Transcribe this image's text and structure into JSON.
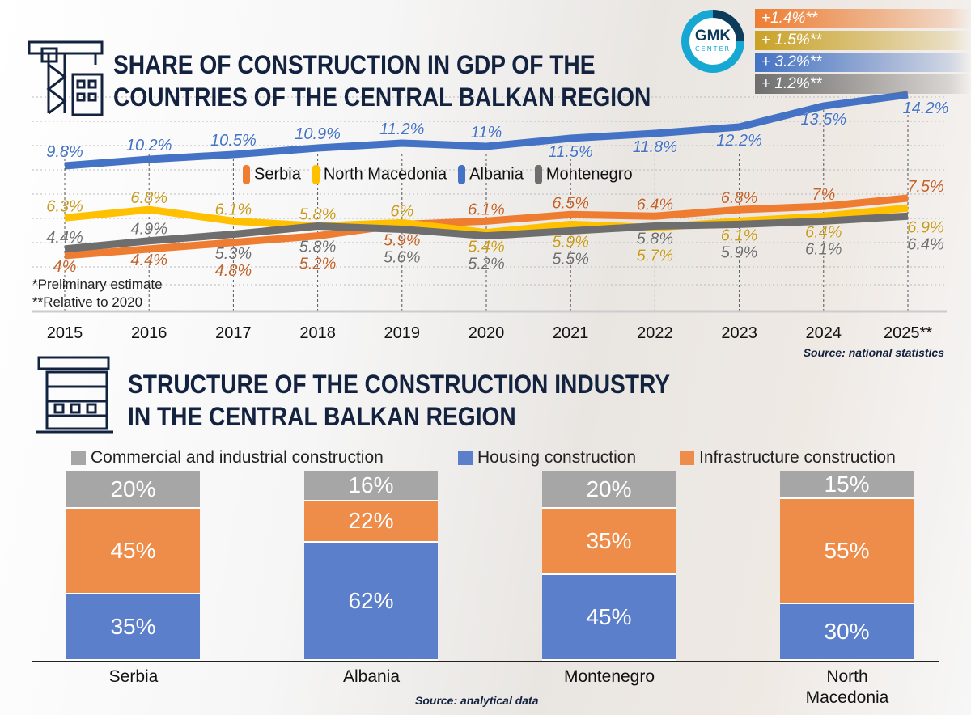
{
  "title_top": [
    "SHARE OF CONSTRUCTION IN GDP OF THE",
    "COUNTRIES OF THE CENTRAL BALKAN REGION"
  ],
  "title_bottom": [
    "STRUCTURE OF THE CONSTRUCTION INDUSTRY",
    "IN THE CENTRAL BALKAN REGION"
  ],
  "logo": {
    "main": "GMK",
    "sub": "CENTER"
  },
  "badges": [
    {
      "text": "+1.4%**",
      "color": "#ee7d32"
    },
    {
      "text": "+ 1.5%**",
      "color": "#c9a227"
    },
    {
      "text": "+ 3.2%**",
      "color": "#4472c4"
    },
    {
      "text": "+ 1.2%**",
      "color": "#6e6e6e"
    }
  ],
  "notes": {
    "preliminary": "*Preliminary estimate",
    "relative": "**Relative to 2020"
  },
  "sources": {
    "top": "Source: national statistics",
    "bottom": "Source: analytical data"
  },
  "chart_data": [
    {
      "type": "line",
      "categories": [
        "2015",
        "2016",
        "2017",
        "2018",
        "2019",
        "2020",
        "2021",
        "2022",
        "2023",
        "2024",
        "2025**"
      ],
      "series": [
        {
          "name": "Serbia",
          "color": "#ee7d32",
          "label_color": "#c0622a",
          "values": [
            4,
            4.4,
            4.8,
            5.2,
            5.9,
            6.1,
            6.5,
            6.4,
            6.8,
            7,
            7.5
          ],
          "labels": [
            "4%",
            "4.4%",
            "4.8%",
            "5.2%",
            "5.9%",
            "6.1%",
            "6.5%",
            "6.4%",
            "6.8%",
            "7%",
            "7.5%"
          ]
        },
        {
          "name": "North Macedonia",
          "color": "#ffc000",
          "label_color": "#c79a1e",
          "values": [
            6.3,
            6.8,
            6.1,
            5.8,
            6,
            5.4,
            5.9,
            5.7,
            6.1,
            6.4,
            6.9
          ],
          "labels": [
            "6.3%",
            "6.8%",
            "6.1%",
            "5.8%",
            "6%",
            "5.4%",
            "5.9%",
            "5.7%",
            "6.1%",
            "6.4%",
            "6.9%"
          ]
        },
        {
          "name": "Albania",
          "color": "#4472c4",
          "label_color": "#4472c4",
          "values": [
            9.8,
            10.2,
            10.5,
            10.9,
            11.2,
            11,
            11.5,
            11.8,
            12.2,
            13.5,
            14.2
          ],
          "labels": [
            "9.8%",
            "10.2%",
            "10.5%",
            "10.9%",
            "11.2%",
            "11%",
            "11.5%",
            "11.8%",
            "12.2%",
            "13.5%",
            "14.2%"
          ]
        },
        {
          "name": "Montenegro",
          "color": "#6e6e6e",
          "label_color": "#6e6e6e",
          "values": [
            4.4,
            4.9,
            5.3,
            5.8,
            5.6,
            5.2,
            5.5,
            5.8,
            5.9,
            6.1,
            6.4
          ],
          "labels": [
            "4.4%",
            "4.9%",
            "5.3%",
            "5.8%",
            "5.6%",
            "5.2%",
            "5.5%",
            "5.8%",
            "5.9%",
            "6.1%",
            "6.4%"
          ]
        }
      ],
      "legend": "center",
      "grid": true
    },
    {
      "type": "bar",
      "stacked": true,
      "categories": [
        "Serbia",
        "Albania",
        "Montenegro",
        "North Macedonia"
      ],
      "series": [
        {
          "name": "Housing construction",
          "color": "#5b7fcb",
          "values": [
            35,
            62,
            45,
            30
          ]
        },
        {
          "name": "Infrastructure construction",
          "color": "#ee8c4a",
          "values": [
            45,
            22,
            35,
            55
          ]
        },
        {
          "name": "Commercial and industrial construction",
          "color": "#a6a6a6",
          "values": [
            20,
            16,
            20,
            15
          ]
        }
      ],
      "legend_order": [
        "Commercial and industrial construction",
        "Housing construction",
        "Infrastructure construction"
      ]
    }
  ]
}
